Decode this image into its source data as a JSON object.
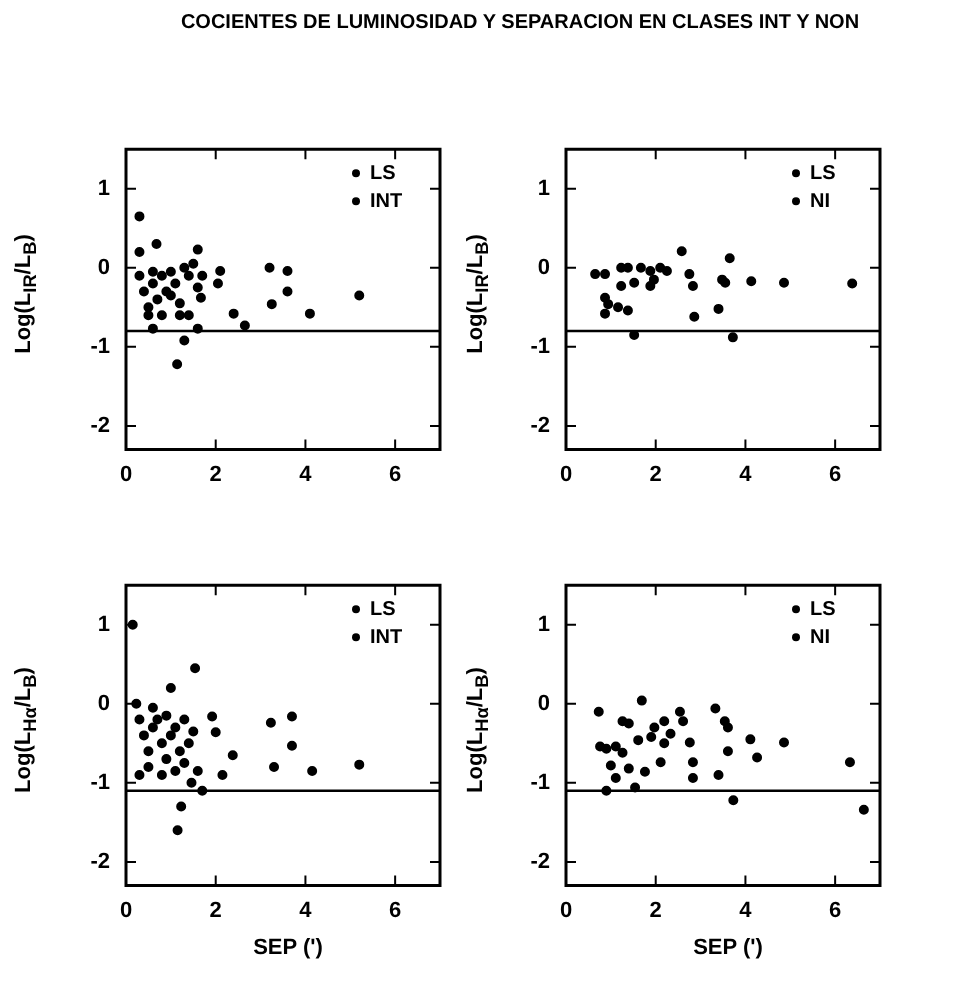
{
  "chart_data": [
    {
      "type": "scatter",
      "title": "COCIENTES DE LUMINOSIDAD Y SEPARACION EN CLASES INT Y NON",
      "ylabel": "Log(L$_{IR}$/L$_{B}$)",
      "xlim": [
        0,
        7
      ],
      "ylim": [
        -2.3,
        1.5
      ],
      "xticks": [
        0,
        2,
        4,
        6
      ],
      "yticks": [
        -2,
        -1,
        0,
        1
      ],
      "marker": "circle",
      "legend": "top right",
      "ref_lines": [
        {
          "axis": "y",
          "value": -0.8
        }
      ],
      "series": [
        {
          "name": "LS",
          "color": "#000000",
          "x": [
            0.3,
            0.68,
            0.3,
            1.6,
            1.3,
            1.14,
            2.1,
            2.05,
            1.67,
            2.4,
            2.65,
            3.2,
            3.6,
            3.25,
            3.6,
            4.1,
            5.2,
            0.6,
            1.6
          ],
          "values": [
            0.65,
            0.3,
            0.2,
            0.23,
            -0.92,
            -1.22,
            -0.04,
            -0.2,
            -0.38,
            -0.58,
            -0.73,
            0.0,
            -0.04,
            -0.46,
            -0.3,
            -0.58,
            -0.35,
            -0.77,
            -0.77
          ]
        },
        {
          "name": "INT",
          "color": "#000000",
          "x": [
            0.3,
            0.4,
            0.5,
            0.6,
            0.7,
            0.8,
            0.9,
            1.0,
            1.1,
            1.2,
            1.3,
            1.4,
            1.5,
            0.5,
            0.8,
            1.2,
            1.4,
            0.6,
            1.0,
            1.7,
            1.6
          ],
          "values": [
            -0.1,
            -0.3,
            -0.5,
            -0.2,
            -0.4,
            -0.1,
            -0.3,
            -0.05,
            -0.2,
            -0.45,
            0.0,
            -0.1,
            0.05,
            -0.6,
            -0.6,
            -0.6,
            -0.6,
            -0.05,
            -0.35,
            -0.1,
            -0.25
          ]
        }
      ]
    },
    {
      "type": "scatter",
      "ylabel": "Log(L$_{IR}$/L$_{B}$)",
      "xlim": [
        0,
        7
      ],
      "ylim": [
        -2.3,
        1.5
      ],
      "xticks": [
        0,
        2,
        4,
        6
      ],
      "yticks": [
        -2,
        -1,
        0,
        1
      ],
      "marker": "circle",
      "legend": "top right",
      "ref_lines": [
        {
          "axis": "y",
          "value": -0.8
        }
      ],
      "series": [
        {
          "name": "LS",
          "color": "#000000",
          "x": [
            0.65,
            0.87,
            1.23,
            1.23,
            1.52,
            1.38,
            1.67,
            1.88,
            2.1,
            2.25,
            1.96,
            2.58,
            2.75,
            2.83,
            3.55
          ],
          "values": [
            -0.08,
            -0.08,
            0.0,
            -0.23,
            -0.19,
            0.0,
            0.0,
            -0.04,
            0.0,
            -0.04,
            -0.15,
            0.21,
            -0.08,
            -0.23,
            -0.19
          ]
        },
        {
          "name": "NI",
          "color": "#000000",
          "x": [
            3.65,
            3.48,
            4.13,
            4.86,
            6.38,
            0.87,
            0.94,
            1.16,
            1.38,
            0.87,
            1.52,
            2.86,
            3.4,
            3.72,
            1.88
          ],
          "values": [
            0.12,
            -0.15,
            -0.17,
            -0.19,
            -0.2,
            -0.38,
            -0.46,
            -0.5,
            -0.54,
            -0.58,
            -0.85,
            -0.62,
            -0.52,
            -0.88,
            -0.23
          ]
        }
      ]
    },
    {
      "type": "scatter",
      "ylabel": "Log(L$_{Hα}$/L$_{B}$)",
      "xlabel": "SEP (')",
      "xlim": [
        0,
        7
      ],
      "ylim": [
        -2.3,
        1.5
      ],
      "xticks": [
        0,
        2,
        4,
        6
      ],
      "yticks": [
        -2,
        -1,
        0,
        1
      ],
      "marker": "circle",
      "legend": "top right",
      "ref_lines": [
        {
          "axis": "y",
          "value": -1.1
        }
      ],
      "series": [
        {
          "name": "LS",
          "color": "#000000",
          "x": [
            0.15,
            1.54,
            1.0,
            0.23,
            1.23,
            1.15,
            1.6,
            1.46,
            1.7,
            1.92,
            2.0,
            2.38,
            2.15,
            3.23,
            3.7,
            3.3,
            3.7,
            4.15,
            5.2
          ],
          "values": [
            1.0,
            0.45,
            0.2,
            0.0,
            -1.3,
            -1.6,
            -0.85,
            -1.0,
            -1.1,
            -0.16,
            -0.36,
            -0.65,
            -0.9,
            -0.24,
            -0.16,
            -0.8,
            -0.53,
            -0.85,
            -0.77
          ]
        },
        {
          "name": "INT",
          "color": "#000000",
          "x": [
            0.3,
            0.4,
            0.5,
            0.6,
            0.7,
            0.8,
            0.9,
            1.0,
            1.1,
            1.2,
            1.3,
            1.4,
            0.5,
            0.8,
            1.1,
            0.6,
            0.9,
            1.3,
            1.5,
            0.3
          ],
          "values": [
            -0.2,
            -0.4,
            -0.6,
            -0.3,
            -0.2,
            -0.5,
            -0.7,
            -0.4,
            -0.3,
            -0.6,
            -0.2,
            -0.5,
            -0.8,
            -0.9,
            -0.85,
            -0.05,
            -0.15,
            -0.75,
            -0.35,
            -0.9
          ]
        }
      ]
    },
    {
      "type": "scatter",
      "ylabel": "Log(L$_{Hα}$/L$_{B}$)",
      "xlabel": "SEP (')",
      "xlim": [
        0,
        7
      ],
      "ylim": [
        -2.3,
        1.5
      ],
      "xticks": [
        0,
        2,
        4,
        6
      ],
      "yticks": [
        -2,
        -1,
        0,
        1
      ],
      "marker": "circle",
      "legend": "top right",
      "ref_lines": [
        {
          "axis": "y",
          "value": -1.1
        }
      ],
      "series": [
        {
          "name": "LS",
          "color": "#000000",
          "x": [
            0.73,
            1.69,
            1.26,
            1.4,
            1.61,
            0.9,
            1.11,
            1.26,
            1.0,
            1.11,
            0.9,
            1.4,
            1.54,
            1.76,
            1.9,
            1.97,
            2.19,
            2.19
          ],
          "values": [
            -0.1,
            0.04,
            -0.22,
            -0.25,
            -0.46,
            -0.57,
            -0.54,
            -0.62,
            -0.78,
            -0.94,
            -1.1,
            -0.82,
            -1.06,
            -0.86,
            -0.42,
            -0.3,
            -0.22,
            -0.5
          ]
        },
        {
          "name": "NI",
          "color": "#000000",
          "x": [
            2.11,
            2.33,
            2.54,
            2.61,
            2.76,
            2.83,
            2.83,
            3.4,
            3.33,
            3.54,
            3.61,
            3.61,
            4.11,
            4.26,
            4.86,
            6.33,
            6.64,
            3.73,
            0.76
          ],
          "values": [
            -0.74,
            -0.38,
            -0.1,
            -0.22,
            -0.49,
            -0.74,
            -0.94,
            -0.9,
            -0.06,
            -0.22,
            -0.3,
            -0.6,
            -0.45,
            -0.68,
            -0.49,
            -0.74,
            -1.34,
            -1.22,
            -0.54
          ]
        }
      ]
    }
  ]
}
